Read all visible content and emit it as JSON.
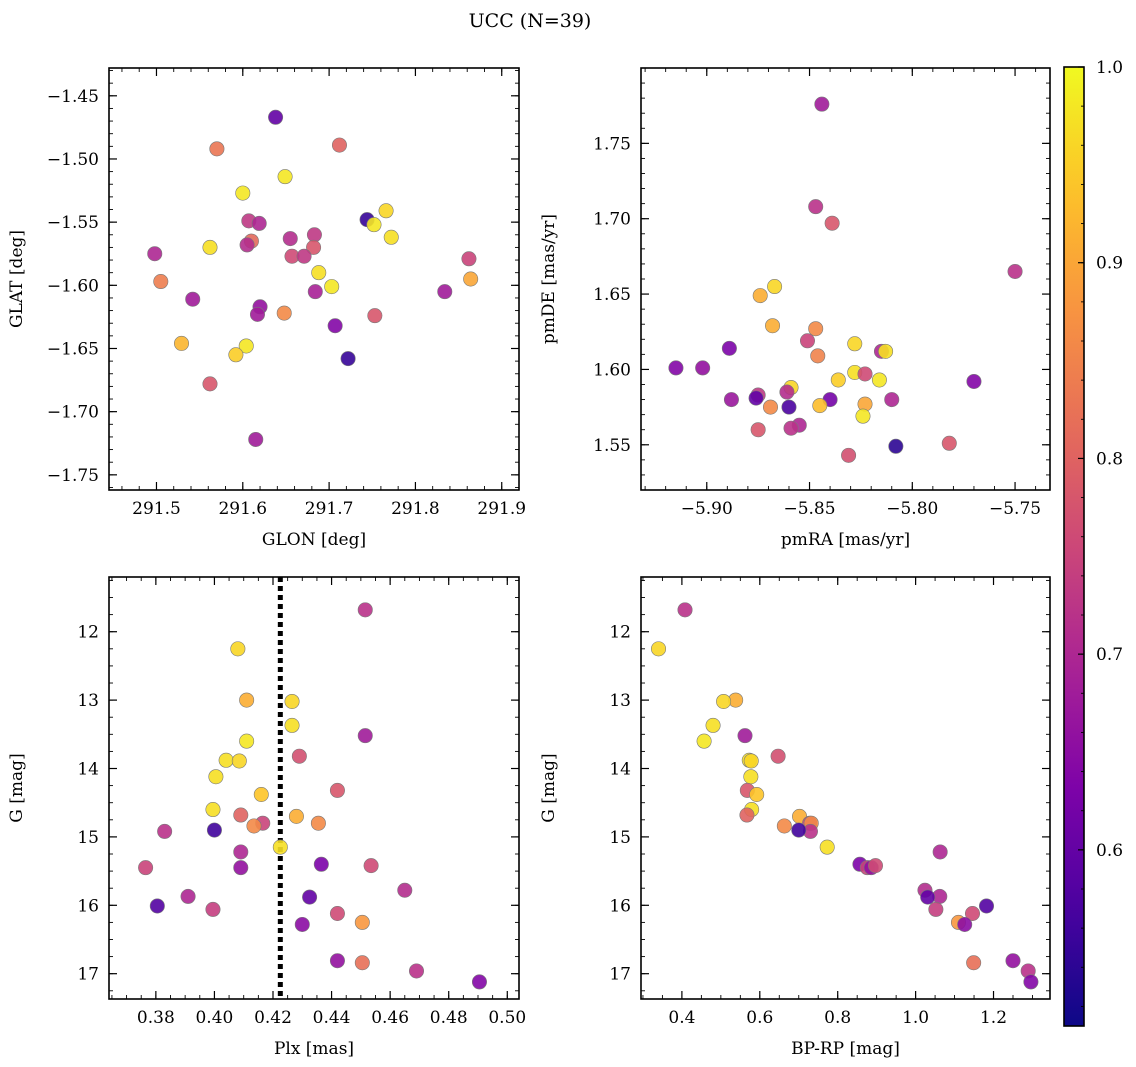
{
  "figure": {
    "suptitle": "UCC (N=39)"
  },
  "colorbar": {
    "cmap": "plasma",
    "range": [
      0.51,
      1.0
    ],
    "ticks": [
      0.6,
      0.7,
      0.8,
      0.9,
      1.0
    ],
    "tick_labels": [
      "0.6",
      "0.7",
      "0.8",
      "0.9",
      "1.0"
    ]
  },
  "marker_style": {
    "edge_color": "#7a7a7a",
    "alpha": 0.9
  },
  "chart_data": [
    {
      "type": "scatter",
      "id": "glon-glat",
      "title": "",
      "xlabel": "GLON [deg]",
      "ylabel": "GLAT [deg]",
      "xlim": [
        291.445,
        291.92
      ],
      "ylim": [
        -1.762,
        -1.428
      ],
      "y_inverted": false,
      "xticks": [
        291.5,
        291.6,
        291.7,
        291.8,
        291.9
      ],
      "xtick_labels": [
        "291.5",
        "291.6",
        "291.7",
        "291.8",
        "291.9"
      ],
      "yticks": [
        -1.75,
        -1.7,
        -1.65,
        -1.6,
        -1.55,
        -1.5,
        -1.45
      ],
      "ytick_labels": [
        "−1.75",
        "−1.70",
        "−1.65",
        "−1.60",
        "−1.55",
        "−1.50",
        "−1.45"
      ],
      "x_minor": 0.02,
      "y_minor": 0.01,
      "vline": null,
      "points": [
        {
          "x": 291.638,
          "y": -1.467,
          "p": 0.6
        },
        {
          "x": 291.712,
          "y": -1.489,
          "p": 0.8
        },
        {
          "x": 291.57,
          "y": -1.492,
          "p": 0.83
        },
        {
          "x": 291.649,
          "y": -1.514,
          "p": 0.98
        },
        {
          "x": 291.6,
          "y": -1.527,
          "p": 0.98
        },
        {
          "x": 291.766,
          "y": -1.541,
          "p": 0.96
        },
        {
          "x": 291.744,
          "y": -1.548,
          "p": 0.55
        },
        {
          "x": 291.607,
          "y": -1.549,
          "p": 0.73
        },
        {
          "x": 291.619,
          "y": -1.551,
          "p": 0.7
        },
        {
          "x": 291.752,
          "y": -1.552,
          "p": 0.98
        },
        {
          "x": 291.683,
          "y": -1.56,
          "p": 0.73
        },
        {
          "x": 291.772,
          "y": -1.562,
          "p": 0.97
        },
        {
          "x": 291.655,
          "y": -1.563,
          "p": 0.71
        },
        {
          "x": 291.61,
          "y": -1.565,
          "p": 0.81
        },
        {
          "x": 291.605,
          "y": -1.568,
          "p": 0.71
        },
        {
          "x": 291.562,
          "y": -1.57,
          "p": 0.97
        },
        {
          "x": 291.682,
          "y": -1.57,
          "p": 0.78
        },
        {
          "x": 291.498,
          "y": -1.575,
          "p": 0.7
        },
        {
          "x": 291.657,
          "y": -1.577,
          "p": 0.76
        },
        {
          "x": 291.671,
          "y": -1.577,
          "p": 0.73
        },
        {
          "x": 291.862,
          "y": -1.579,
          "p": 0.75
        },
        {
          "x": 291.688,
          "y": -1.59,
          "p": 0.97
        },
        {
          "x": 291.864,
          "y": -1.595,
          "p": 0.9
        },
        {
          "x": 291.505,
          "y": -1.597,
          "p": 0.84
        },
        {
          "x": 291.703,
          "y": -1.601,
          "p": 0.98
        },
        {
          "x": 291.834,
          "y": -1.605,
          "p": 0.68
        },
        {
          "x": 291.684,
          "y": -1.605,
          "p": 0.69
        },
        {
          "x": 291.542,
          "y": -1.611,
          "p": 0.68
        },
        {
          "x": 291.62,
          "y": -1.617,
          "p": 0.66
        },
        {
          "x": 291.648,
          "y": -1.622,
          "p": 0.86
        },
        {
          "x": 291.617,
          "y": -1.623,
          "p": 0.68
        },
        {
          "x": 291.753,
          "y": -1.624,
          "p": 0.78
        },
        {
          "x": 291.707,
          "y": -1.632,
          "p": 0.64
        },
        {
          "x": 291.529,
          "y": -1.646,
          "p": 0.92
        },
        {
          "x": 291.604,
          "y": -1.648,
          "p": 0.98
        },
        {
          "x": 291.592,
          "y": -1.655,
          "p": 0.95
        },
        {
          "x": 291.722,
          "y": -1.658,
          "p": 0.55
        },
        {
          "x": 291.562,
          "y": -1.678,
          "p": 0.78
        },
        {
          "x": 291.615,
          "y": -1.722,
          "p": 0.68
        }
      ]
    },
    {
      "type": "scatter",
      "id": "pmra-pmde",
      "title": "",
      "xlabel": "pmRA [mas/yr]",
      "ylabel": "pmDE [mas/yr]",
      "xlim": [
        -5.932,
        -5.733
      ],
      "ylim": [
        1.52,
        1.8
      ],
      "y_inverted": false,
      "xticks": [
        -5.9,
        -5.85,
        -5.8,
        -5.75
      ],
      "xtick_labels": [
        "−5.90",
        "−5.85",
        "−5.80",
        "−5.75"
      ],
      "yticks": [
        1.55,
        1.6,
        1.65,
        1.7,
        1.75
      ],
      "ytick_labels": [
        "1.55",
        "1.60",
        "1.65",
        "1.70",
        "1.75"
      ],
      "x_minor": 0.01,
      "y_minor": 0.01,
      "vline": null,
      "points": [
        {
          "x": -5.844,
          "y": 1.776,
          "p": 0.68
        },
        {
          "x": -5.847,
          "y": 1.708,
          "p": 0.72
        },
        {
          "x": -5.839,
          "y": 1.697,
          "p": 0.78
        },
        {
          "x": -5.75,
          "y": 1.665,
          "p": 0.72
        },
        {
          "x": -5.867,
          "y": 1.655,
          "p": 0.96
        },
        {
          "x": -5.874,
          "y": 1.649,
          "p": 0.91
        },
        {
          "x": -5.868,
          "y": 1.629,
          "p": 0.91
        },
        {
          "x": -5.847,
          "y": 1.627,
          "p": 0.86
        },
        {
          "x": -5.851,
          "y": 1.619,
          "p": 0.75
        },
        {
          "x": -5.828,
          "y": 1.617,
          "p": 0.96
        },
        {
          "x": -5.815,
          "y": 1.612,
          "p": 0.7
        },
        {
          "x": -5.813,
          "y": 1.612,
          "p": 0.97
        },
        {
          "x": -5.889,
          "y": 1.614,
          "p": 0.63
        },
        {
          "x": -5.846,
          "y": 1.609,
          "p": 0.85
        },
        {
          "x": -5.915,
          "y": 1.601,
          "p": 0.64
        },
        {
          "x": -5.902,
          "y": 1.601,
          "p": 0.66
        },
        {
          "x": -5.828,
          "y": 1.598,
          "p": 0.97
        },
        {
          "x": -5.823,
          "y": 1.597,
          "p": 0.76
        },
        {
          "x": -5.836,
          "y": 1.593,
          "p": 0.95
        },
        {
          "x": -5.816,
          "y": 1.593,
          "p": 0.98
        },
        {
          "x": -5.77,
          "y": 1.592,
          "p": 0.64
        },
        {
          "x": -5.859,
          "y": 1.588,
          "p": 0.96
        },
        {
          "x": -5.861,
          "y": 1.585,
          "p": 0.71
        },
        {
          "x": -5.875,
          "y": 1.583,
          "p": 0.73
        },
        {
          "x": -5.876,
          "y": 1.581,
          "p": 0.6
        },
        {
          "x": -5.888,
          "y": 1.58,
          "p": 0.67
        },
        {
          "x": -5.84,
          "y": 1.58,
          "p": 0.62
        },
        {
          "x": -5.81,
          "y": 1.58,
          "p": 0.7
        },
        {
          "x": -5.845,
          "y": 1.576,
          "p": 0.93
        },
        {
          "x": -5.823,
          "y": 1.577,
          "p": 0.9
        },
        {
          "x": -5.869,
          "y": 1.575,
          "p": 0.86
        },
        {
          "x": -5.86,
          "y": 1.575,
          "p": 0.57
        },
        {
          "x": -5.824,
          "y": 1.569,
          "p": 0.98
        },
        {
          "x": -5.855,
          "y": 1.563,
          "p": 0.7
        },
        {
          "x": -5.859,
          "y": 1.561,
          "p": 0.72
        },
        {
          "x": -5.875,
          "y": 1.56,
          "p": 0.78
        },
        {
          "x": -5.808,
          "y": 1.549,
          "p": 0.54
        },
        {
          "x": -5.782,
          "y": 1.551,
          "p": 0.78
        },
        {
          "x": -5.831,
          "y": 1.543,
          "p": 0.77
        }
      ]
    },
    {
      "type": "scatter",
      "id": "plx-g",
      "title": "",
      "xlabel": "Plx [mas]",
      "ylabel": "G [mag]",
      "xlim": [
        0.364,
        0.504
      ],
      "ylim": [
        17.37,
        11.2
      ],
      "y_inverted": true,
      "xticks": [
        0.38,
        0.4,
        0.42,
        0.44,
        0.46,
        0.48,
        0.5
      ],
      "xtick_labels": [
        "0.38",
        "0.40",
        "0.42",
        "0.44",
        "0.46",
        "0.48",
        "0.50"
      ],
      "yticks": [
        12,
        13,
        14,
        15,
        16,
        17
      ],
      "ytick_labels": [
        "12",
        "13",
        "14",
        "15",
        "16",
        "17"
      ],
      "x_minor": 0.005,
      "y_minor": 0.25,
      "vline": {
        "x": 0.4225,
        "style": "dotted",
        "color": "#000000"
      },
      "points": [
        {
          "x": 0.4515,
          "y": 11.68,
          "p": 0.72
        },
        {
          "x": 0.408,
          "y": 12.25,
          "p": 0.96
        },
        {
          "x": 0.411,
          "y": 13.0,
          "p": 0.91
        },
        {
          "x": 0.4265,
          "y": 13.02,
          "p": 0.96
        },
        {
          "x": 0.4265,
          "y": 13.37,
          "p": 0.97
        },
        {
          "x": 0.4515,
          "y": 13.52,
          "p": 0.68
        },
        {
          "x": 0.411,
          "y": 13.6,
          "p": 0.98
        },
        {
          "x": 0.429,
          "y": 13.82,
          "p": 0.77
        },
        {
          "x": 0.404,
          "y": 13.88,
          "p": 0.97
        },
        {
          "x": 0.4085,
          "y": 13.89,
          "p": 0.96
        },
        {
          "x": 0.4005,
          "y": 14.12,
          "p": 0.97
        },
        {
          "x": 0.442,
          "y": 14.32,
          "p": 0.78
        },
        {
          "x": 0.416,
          "y": 14.38,
          "p": 0.94
        },
        {
          "x": 0.3995,
          "y": 14.6,
          "p": 0.97
        },
        {
          "x": 0.409,
          "y": 14.68,
          "p": 0.8
        },
        {
          "x": 0.428,
          "y": 14.7,
          "p": 0.91
        },
        {
          "x": 0.4165,
          "y": 14.8,
          "p": 0.75
        },
        {
          "x": 0.4355,
          "y": 14.8,
          "p": 0.86
        },
        {
          "x": 0.4135,
          "y": 14.84,
          "p": 0.86
        },
        {
          "x": 0.383,
          "y": 14.92,
          "p": 0.72
        },
        {
          "x": 0.4,
          "y": 14.9,
          "p": 0.56
        },
        {
          "x": 0.4225,
          "y": 15.15,
          "p": 0.97
        },
        {
          "x": 0.409,
          "y": 15.22,
          "p": 0.7
        },
        {
          "x": 0.4365,
          "y": 15.4,
          "p": 0.63
        },
        {
          "x": 0.3765,
          "y": 15.45,
          "p": 0.75
        },
        {
          "x": 0.409,
          "y": 15.45,
          "p": 0.66
        },
        {
          "x": 0.4535,
          "y": 15.42,
          "p": 0.76
        },
        {
          "x": 0.465,
          "y": 15.78,
          "p": 0.71
        },
        {
          "x": 0.391,
          "y": 15.87,
          "p": 0.7
        },
        {
          "x": 0.4325,
          "y": 15.88,
          "p": 0.6
        },
        {
          "x": 0.3805,
          "y": 16.01,
          "p": 0.58
        },
        {
          "x": 0.3995,
          "y": 16.06,
          "p": 0.74
        },
        {
          "x": 0.442,
          "y": 16.12,
          "p": 0.76
        },
        {
          "x": 0.4505,
          "y": 16.25,
          "p": 0.88
        },
        {
          "x": 0.43,
          "y": 16.28,
          "p": 0.65
        },
        {
          "x": 0.442,
          "y": 16.81,
          "p": 0.66
        },
        {
          "x": 0.4505,
          "y": 16.84,
          "p": 0.82
        },
        {
          "x": 0.469,
          "y": 16.96,
          "p": 0.72
        },
        {
          "x": 0.4905,
          "y": 17.12,
          "p": 0.64
        }
      ]
    },
    {
      "type": "scatter",
      "id": "bprp-g",
      "title": "",
      "xlabel": "BP-RP [mag]",
      "ylabel": "G [mag]",
      "xlim": [
        0.295,
        1.345
      ],
      "ylim": [
        17.37,
        11.2
      ],
      "y_inverted": true,
      "xticks": [
        0.4,
        0.6,
        0.8,
        1.0,
        1.2
      ],
      "xtick_labels": [
        "0.4",
        "0.6",
        "0.8",
        "1.0",
        "1.2"
      ],
      "yticks": [
        12,
        13,
        14,
        15,
        16,
        17
      ],
      "ytick_labels": [
        "12",
        "13",
        "14",
        "15",
        "16",
        "17"
      ],
      "x_minor": 0.05,
      "y_minor": 0.25,
      "vline": null,
      "points": [
        {
          "x": 0.408,
          "y": 11.68,
          "p": 0.72
        },
        {
          "x": 0.34,
          "y": 12.25,
          "p": 0.96
        },
        {
          "x": 0.538,
          "y": 13.0,
          "p": 0.91
        },
        {
          "x": 0.507,
          "y": 13.02,
          "p": 0.96
        },
        {
          "x": 0.48,
          "y": 13.37,
          "p": 0.97
        },
        {
          "x": 0.562,
          "y": 13.52,
          "p": 0.68
        },
        {
          "x": 0.457,
          "y": 13.6,
          "p": 0.98
        },
        {
          "x": 0.647,
          "y": 13.82,
          "p": 0.77
        },
        {
          "x": 0.573,
          "y": 13.88,
          "p": 0.97
        },
        {
          "x": 0.578,
          "y": 13.89,
          "p": 0.96
        },
        {
          "x": 0.577,
          "y": 14.12,
          "p": 0.97
        },
        {
          "x": 0.568,
          "y": 14.32,
          "p": 0.78
        },
        {
          "x": 0.592,
          "y": 14.38,
          "p": 0.94
        },
        {
          "x": 0.579,
          "y": 14.6,
          "p": 0.97
        },
        {
          "x": 0.567,
          "y": 14.68,
          "p": 0.8
        },
        {
          "x": 0.702,
          "y": 14.7,
          "p": 0.91
        },
        {
          "x": 0.728,
          "y": 14.8,
          "p": 0.75
        },
        {
          "x": 0.732,
          "y": 14.8,
          "p": 0.86
        },
        {
          "x": 0.663,
          "y": 14.84,
          "p": 0.86
        },
        {
          "x": 0.73,
          "y": 14.92,
          "p": 0.72
        },
        {
          "x": 0.7,
          "y": 14.9,
          "p": 0.56
        },
        {
          "x": 0.773,
          "y": 15.15,
          "p": 0.97
        },
        {
          "x": 1.063,
          "y": 15.22,
          "p": 0.7
        },
        {
          "x": 0.857,
          "y": 15.4,
          "p": 0.63
        },
        {
          "x": 0.876,
          "y": 15.45,
          "p": 0.75
        },
        {
          "x": 0.886,
          "y": 15.45,
          "p": 0.66
        },
        {
          "x": 0.897,
          "y": 15.42,
          "p": 0.76
        },
        {
          "x": 1.024,
          "y": 15.78,
          "p": 0.71
        },
        {
          "x": 1.062,
          "y": 15.87,
          "p": 0.7
        },
        {
          "x": 1.031,
          "y": 15.88,
          "p": 0.6
        },
        {
          "x": 1.182,
          "y": 16.01,
          "p": 0.58
        },
        {
          "x": 1.052,
          "y": 16.06,
          "p": 0.74
        },
        {
          "x": 1.146,
          "y": 16.12,
          "p": 0.76
        },
        {
          "x": 1.11,
          "y": 16.25,
          "p": 0.88
        },
        {
          "x": 1.126,
          "y": 16.28,
          "p": 0.65
        },
        {
          "x": 1.25,
          "y": 16.81,
          "p": 0.66
        },
        {
          "x": 1.149,
          "y": 16.84,
          "p": 0.82
        },
        {
          "x": 1.289,
          "y": 16.96,
          "p": 0.72
        },
        {
          "x": 1.296,
          "y": 17.12,
          "p": 0.64
        }
      ]
    }
  ]
}
